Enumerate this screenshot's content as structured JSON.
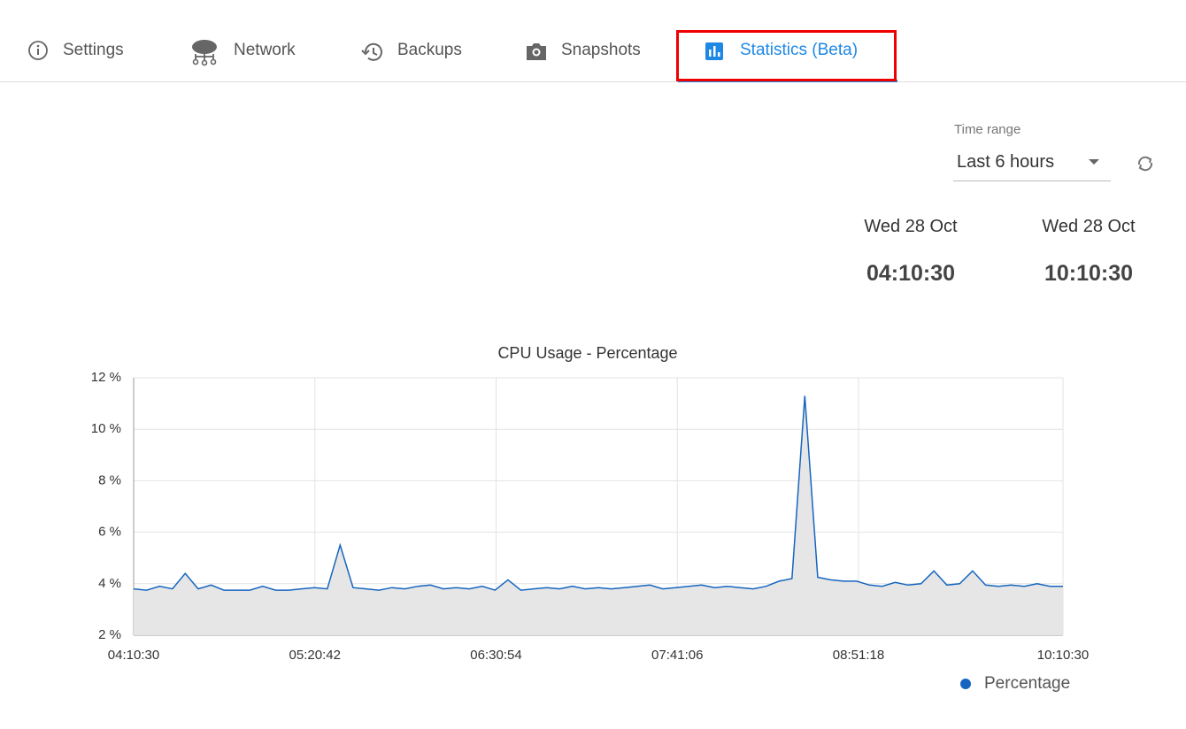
{
  "tabs": [
    "Settings",
    "Network",
    "Backups",
    "Snapshots",
    "Statistics (Beta)"
  ],
  "time_range": {
    "label": "Time range",
    "value": "Last 6 hours"
  },
  "range_start": {
    "date": "Wed 28 Oct",
    "time": "04:10:30"
  },
  "range_end": {
    "date": "Wed 28 Oct",
    "time": "10:10:30"
  },
  "chart_data": {
    "type": "line",
    "title": "CPU Usage - Percentage",
    "x": [
      "04:10:30",
      "04:15:30",
      "04:20:30",
      "04:25:30",
      "04:30:30",
      "04:35:30",
      "04:40:30",
      "04:45:30",
      "04:50:30",
      "04:55:30",
      "05:00:30",
      "05:05:30",
      "05:10:30",
      "05:15:30",
      "05:20:30",
      "05:25:30",
      "05:30:30",
      "05:35:30",
      "05:40:30",
      "05:45:30",
      "05:50:30",
      "05:55:30",
      "06:00:30",
      "06:05:30",
      "06:10:30",
      "06:15:30",
      "06:20:30",
      "06:25:30",
      "06:30:30",
      "06:35:30",
      "06:40:30",
      "06:45:30",
      "06:50:30",
      "06:55:30",
      "07:00:30",
      "07:05:30",
      "07:10:30",
      "07:15:30",
      "07:20:30",
      "07:25:30",
      "07:30:30",
      "07:35:30",
      "07:40:30",
      "07:45:30",
      "07:50:30",
      "07:55:30",
      "08:00:30",
      "08:05:30",
      "08:10:30",
      "08:15:30",
      "08:20:30",
      "08:25:30",
      "08:30:30",
      "08:35:30",
      "08:40:30",
      "08:45:30",
      "08:50:30",
      "08:55:30",
      "09:00:30",
      "09:05:30",
      "09:10:30",
      "09:15:30",
      "09:20:30",
      "09:25:30",
      "09:30:30",
      "09:35:30",
      "09:40:30",
      "09:45:30",
      "09:50:30",
      "09:55:30",
      "10:00:30",
      "10:05:30",
      "10:10:30"
    ],
    "series": [
      {
        "name": "Percentage",
        "color": "#1565c0",
        "values": [
          3.8,
          3.75,
          3.9,
          3.8,
          4.4,
          3.8,
          3.95,
          3.75,
          3.75,
          3.75,
          3.9,
          3.75,
          3.75,
          3.8,
          3.85,
          3.8,
          5.5,
          3.85,
          3.8,
          3.75,
          3.85,
          3.8,
          3.9,
          3.95,
          3.8,
          3.85,
          3.8,
          3.9,
          3.75,
          4.15,
          3.75,
          3.8,
          3.85,
          3.8,
          3.9,
          3.8,
          3.85,
          3.8,
          3.85,
          3.9,
          3.95,
          3.8,
          3.85,
          3.9,
          3.95,
          3.85,
          3.9,
          3.85,
          3.8,
          3.9,
          4.1,
          4.2,
          11.3,
          4.25,
          4.15,
          4.1,
          4.1,
          3.95,
          3.9,
          4.05,
          3.95,
          4.0,
          4.5,
          3.95,
          4.0,
          4.5,
          3.95,
          3.9,
          3.95,
          3.9,
          4.0,
          3.9,
          3.9
        ]
      }
    ],
    "area_color": "#e6e6e6",
    "xlim": [
      "04:10:30",
      "10:10:30"
    ],
    "xticks": [
      "04:10:30",
      "05:20:42",
      "06:30:54",
      "07:41:06",
      "08:51:18",
      "10:10:30"
    ],
    "ylim": [
      2,
      12
    ],
    "yticks": [
      {
        "value": 2,
        "label": "2 %"
      },
      {
        "value": 4,
        "label": "4 %"
      },
      {
        "value": 6,
        "label": "6 %"
      },
      {
        "value": 8,
        "label": "8 %"
      },
      {
        "value": 10,
        "label": "10 %"
      },
      {
        "value": 12,
        "label": "12 %"
      }
    ],
    "grid": true,
    "legend": "bottom-right"
  }
}
